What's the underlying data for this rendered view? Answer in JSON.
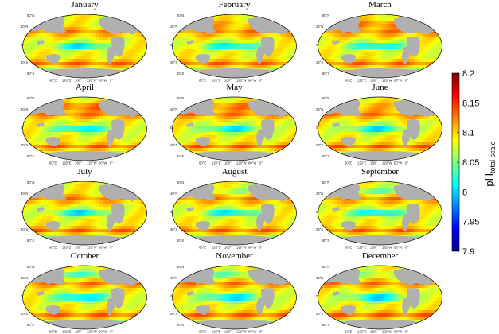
{
  "months": [
    "January",
    "February",
    "March",
    "April",
    "May",
    "June",
    "July",
    "August",
    "September",
    "October",
    "November",
    "December"
  ],
  "lat_labels": [
    "80°N",
    "40°N",
    "0°",
    "40°S",
    "80°S"
  ],
  "lon_labels": [
    "60°E",
    "120°E",
    "180°",
    "120°W",
    "60°W",
    "0°"
  ],
  "colorbar": {
    "ticks": [
      "8.2",
      "8.15",
      "8.1",
      "8.05",
      "8",
      "7.95",
      "7.9"
    ],
    "title_main": "pH",
    "title_sub": "total scale",
    "min": 7.9,
    "max": 8.2,
    "colormap": "jet",
    "colors": [
      "#00007f",
      "#0000ff",
      "#007fff",
      "#00ffff",
      "#7fff7f",
      "#ffff00",
      "#ff7f00",
      "#ff0000",
      "#7f0000"
    ]
  },
  "colors": {
    "land": "#b0b0b0",
    "map_border": "#000000"
  }
}
